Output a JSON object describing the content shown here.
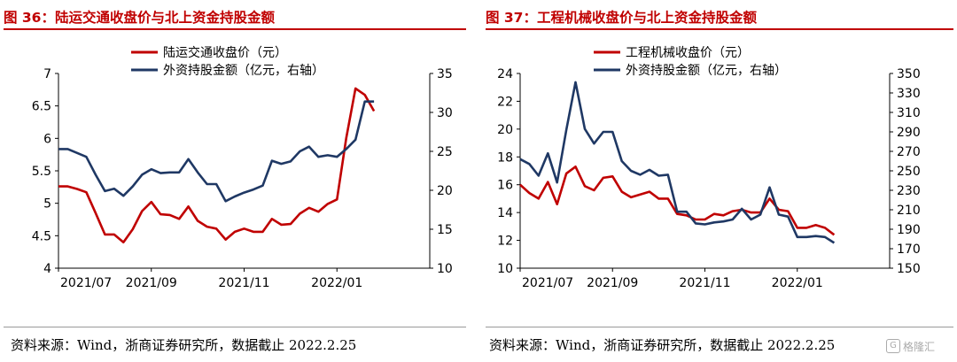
{
  "panels": [
    {
      "title": "图 36：陆运交通收盘价与北上资金持股金额",
      "source": "资料来源：Wind，浙商证券研究所，数据截止 2022.2.25",
      "legend": [
        "陆运交通收盘价（元）",
        "外资持股金额（亿元，右轴）"
      ]
    },
    {
      "title": "图 37：工程机械收盘价与北上资金持股金额",
      "source": "资料来源：Wind，浙商证券研究所，数据截止 2022.2.25",
      "legend": [
        "工程机械收盘价（元）",
        "外资持股金额（亿元，右轴）"
      ]
    }
  ],
  "watermark": "格隆汇",
  "colors": {
    "price": "#c00000",
    "holding": "#1f3864",
    "title": "#c00000"
  },
  "chart_data": [
    {
      "type": "line",
      "title": "陆运交通收盘价与北上资金持股金额",
      "x_ticks": [
        "2021/07",
        "2021/09",
        "2021/11",
        "2022/01"
      ],
      "x_tick_positions": [
        0,
        10,
        20,
        30
      ],
      "x_range": [
        0,
        40
      ],
      "left_axis": {
        "ylim": [
          4,
          7
        ],
        "ticks": [
          "4",
          "4.5",
          "5",
          "5.5",
          "6",
          "6.5",
          "7"
        ]
      },
      "right_axis": {
        "ylim": [
          10,
          35
        ],
        "ticks": [
          "10",
          "15",
          "20",
          "25",
          "30",
          "35"
        ]
      },
      "series": [
        {
          "name": "陆运交通收盘价（元）",
          "axis": "left",
          "x": [
            0,
            1,
            2,
            3,
            4,
            5,
            6,
            7,
            8,
            9,
            10,
            11,
            12,
            13,
            14,
            15,
            16,
            17,
            18,
            19,
            20,
            21,
            22,
            23,
            24,
            25,
            26,
            27,
            28,
            29,
            30,
            31,
            32,
            33,
            34,
            35,
            36,
            37,
            38,
            39,
            40
          ],
          "values": [
            5.26,
            5.26,
            5.22,
            5.17,
            4.85,
            4.52,
            4.52,
            4.4,
            4.6,
            4.88,
            5.02,
            4.83,
            4.82,
            4.76,
            4.95,
            4.73,
            4.64,
            4.61,
            4.44,
            4.56,
            4.61,
            4.56,
            4.56,
            4.76,
            4.67,
            4.68,
            4.84,
            4.93,
            4.87,
            4.99,
            5.06,
            6.0,
            6.77,
            6.67,
            6.42,
            null,
            null,
            null,
            null,
            null,
            null
          ]
        },
        {
          "name": "外资持股金额（亿元，右轴）",
          "axis": "right",
          "x": [
            0,
            1,
            2,
            3,
            4,
            5,
            6,
            7,
            8,
            9,
            10,
            11,
            12,
            13,
            14,
            15,
            16,
            17,
            18,
            19,
            20,
            21,
            22,
            23,
            24,
            25,
            26,
            27,
            28,
            29,
            30,
            31,
            32,
            33,
            34,
            35,
            36,
            37,
            38,
            39,
            40
          ],
          "values": [
            25.3,
            25.3,
            24.8,
            24.3,
            22.0,
            19.9,
            20.2,
            19.3,
            20.5,
            22.0,
            22.7,
            22.2,
            22.3,
            22.3,
            24.0,
            22.3,
            20.8,
            20.8,
            18.6,
            19.2,
            19.7,
            20.1,
            20.6,
            23.8,
            23.4,
            23.7,
            25.0,
            25.6,
            24.3,
            24.5,
            24.3,
            25.3,
            26.5,
            31.4,
            31.4,
            null,
            null,
            null,
            null,
            null,
            null
          ]
        }
      ]
    },
    {
      "type": "line",
      "title": "工程机械收盘价与北上资金持股金额",
      "x_ticks": [
        "2021/07",
        "2021/09",
        "2021/11",
        "2022/01"
      ],
      "x_tick_positions": [
        0,
        10,
        20,
        30
      ],
      "x_range": [
        0,
        40
      ],
      "left_axis": {
        "ylim": [
          10,
          24
        ],
        "ticks": [
          "10",
          "12",
          "14",
          "16",
          "18",
          "20",
          "22",
          "24"
        ]
      },
      "right_axis": {
        "ylim": [
          150,
          350
        ],
        "ticks": [
          "150",
          "170",
          "190",
          "210",
          "230",
          "250",
          "270",
          "290",
          "310",
          "330",
          "350"
        ]
      },
      "series": [
        {
          "name": "工程机械收盘价（元）",
          "axis": "left",
          "x": [
            0,
            1,
            2,
            3,
            4,
            5,
            6,
            7,
            8,
            9,
            10,
            11,
            12,
            13,
            14,
            15,
            16,
            17,
            18,
            19,
            20,
            21,
            22,
            23,
            24,
            25,
            26,
            27,
            28,
            29,
            30,
            31,
            32,
            33,
            34,
            35,
            36,
            37,
            38,
            39,
            40
          ],
          "values": [
            16.0,
            15.4,
            15.0,
            16.2,
            14.6,
            16.8,
            17.3,
            15.9,
            15.6,
            16.5,
            16.6,
            15.5,
            15.1,
            15.3,
            15.5,
            15.0,
            15.0,
            13.9,
            13.8,
            13.5,
            13.5,
            13.9,
            13.8,
            14.1,
            14.2,
            14.0,
            14.0,
            15.0,
            14.2,
            14.1,
            12.9,
            12.9,
            13.1,
            12.9,
            12.4,
            null,
            null,
            null,
            null,
            null,
            null
          ]
        },
        {
          "name": "外资持股金额（亿元，右轴）",
          "axis": "right",
          "x": [
            0,
            1,
            2,
            3,
            4,
            5,
            6,
            7,
            8,
            9,
            10,
            11,
            12,
            13,
            14,
            15,
            16,
            17,
            18,
            19,
            20,
            21,
            22,
            23,
            24,
            25,
            26,
            27,
            28,
            29,
            30,
            31,
            32,
            33,
            34,
            35,
            36,
            37,
            38,
            39,
            40
          ],
          "values": [
            262,
            257,
            245,
            268,
            238,
            292,
            341,
            293,
            278,
            290,
            290,
            260,
            250,
            246,
            251,
            245,
            246,
            208,
            208,
            196,
            195,
            197,
            198,
            200,
            211,
            200,
            205,
            233,
            205,
            203,
            182,
            182,
            183,
            182,
            176,
            null,
            null,
            null,
            null,
            null,
            null
          ]
        }
      ]
    }
  ]
}
